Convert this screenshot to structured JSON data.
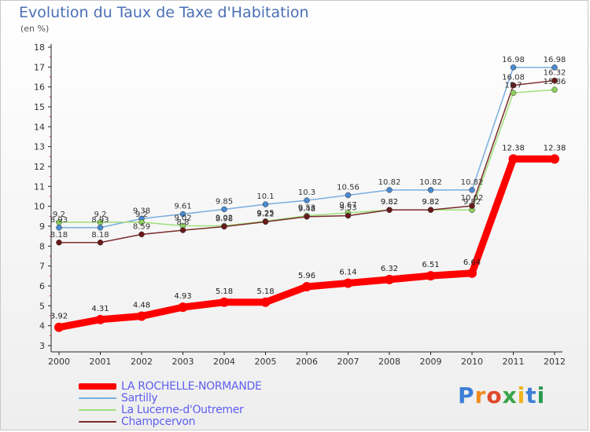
{
  "header": {
    "title": "Evolution du Taux de Taxe d'Habitation",
    "subtitle": "(en %)"
  },
  "brand": {
    "text": "Proxiti",
    "letters": [
      "P",
      "r",
      "o",
      "x",
      "i",
      "t",
      "i"
    ],
    "colors": [
      "#3d7fd6",
      "#f08a1c",
      "#e0482c",
      "#3aa34a",
      "#f0b418",
      "#3d7fd6",
      "#2a9a52"
    ]
  },
  "chart_data": {
    "type": "line",
    "title": "Evolution du Taux de Taxe d'Habitation",
    "subtitle": "(en %)",
    "x": [
      "2000",
      "2001",
      "2002",
      "2003",
      "2004",
      "2005",
      "2006",
      "2007",
      "2008",
      "2009",
      "2010",
      "2011",
      "2012"
    ],
    "ylim": [
      3,
      18
    ],
    "yticks": [
      3,
      4,
      5,
      6,
      7,
      8,
      9,
      10,
      11,
      12,
      13,
      14,
      15,
      16,
      17,
      18
    ],
    "grid": false,
    "legend": "bottom-left",
    "series": [
      {
        "name": "LA ROCHELLE-NORMANDE",
        "color": "#ff0000",
        "values": [
          3.92,
          4.31,
          4.48,
          4.93,
          5.18,
          5.18,
          5.96,
          6.14,
          6.32,
          6.51,
          6.64,
          12.38,
          12.38
        ],
        "labels": [
          "3.92",
          "4.31",
          "4.48",
          "4.93",
          "5.18",
          "5.18",
          "5.96",
          "6.14",
          "6.32",
          "6.51",
          "6.64",
          "12.38",
          "12.38"
        ]
      },
      {
        "name": "Sartilly",
        "color": "#7aaedf",
        "values": [
          8.93,
          8.93,
          9.38,
          9.61,
          9.85,
          10.1,
          10.3,
          10.56,
          10.82,
          10.82,
          10.82,
          16.98,
          16.98
        ],
        "labels": [
          "8.93",
          "8.93",
          "9.38",
          "9.61",
          "9.85",
          "10.1",
          "10.3",
          "10.56",
          "10.82",
          "10.82",
          "10.82",
          "16.98",
          "16.98"
        ]
      },
      {
        "name": "La Lucerne-d'Outremer",
        "color": "#9fe07a",
        "values": [
          9.2,
          9.2,
          9.2,
          9.02,
          9.02,
          9.25,
          9.53,
          9.67,
          9.82,
          9.82,
          9.82,
          15.7,
          15.86
        ],
        "labels": [
          "9.2",
          "9.2",
          "9.2",
          "9.02",
          "9.02",
          "9.25",
          "9.53",
          "9.67",
          "9.82",
          "9.82",
          "9.82",
          "15.7",
          "15.86"
        ]
      },
      {
        "name": "Champcervon",
        "color": "#7a2a2a",
        "values": [
          8.18,
          8.18,
          8.59,
          8.8,
          8.98,
          9.22,
          9.48,
          9.53,
          9.82,
          9.82,
          10.02,
          16.08,
          16.32
        ],
        "labels": [
          "8.18",
          "8.18",
          "8.59",
          "8.8",
          "8.98",
          "9.22",
          "9.48",
          "9.53",
          "9.82",
          "9.82",
          "10.02",
          "16.08",
          "16.32"
        ]
      }
    ]
  }
}
